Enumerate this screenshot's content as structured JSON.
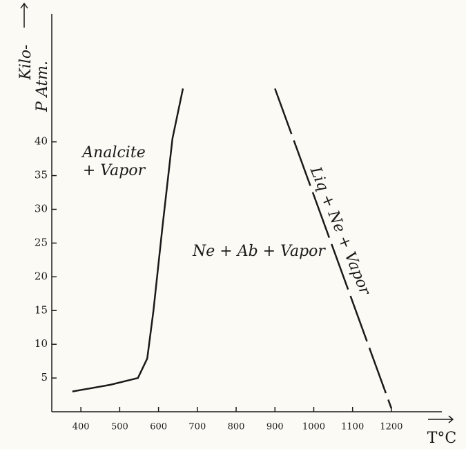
{
  "chart_data": {
    "type": "line",
    "ylabel": "Kilo-",
    "ylabel2": "P Atm.",
    "xlabel": "T°C",
    "xlim": [
      325,
      1330
    ],
    "ylim": [
      0,
      60
    ],
    "xticks": [
      400,
      500,
      600,
      700,
      800,
      900,
      1000,
      1100,
      1200
    ],
    "yticks": [
      5,
      10,
      15,
      20,
      25,
      30,
      35,
      40
    ],
    "color": "#1a1a1a",
    "series": [
      {
        "x": [
          378,
          476,
          547,
          571,
          587,
          610,
          636,
          663
        ],
        "values": [
          3.0,
          4.0,
          5.0,
          7.9,
          15.0,
          27.3,
          40.5,
          47.9
        ]
      },
      {
        "x": [
          900,
          1200
        ],
        "values": [
          47.9,
          0.5
        ],
        "dashed": true
      }
    ],
    "annotations": [
      "Analcite",
      "+ Vapor",
      "Ne + Ab + Vapor",
      "Liq + Ne + Vapor"
    ]
  }
}
